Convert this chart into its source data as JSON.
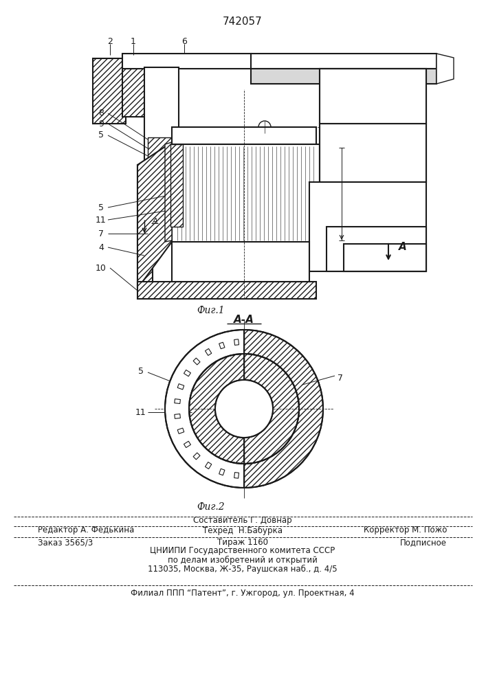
{
  "patent_number": "742057",
  "fig1_label": "Фиг.1",
  "fig2_label": "Фиг.2",
  "section_label": "А-А",
  "bg_color": "#ffffff",
  "line_color": "#1a1a1a",
  "footer": {
    "line0_center": "Составитель Г. Довнар",
    "line1_left": "Редактор А. Федькина",
    "line1_center": "Техред  Н.Бабурка",
    "line1_right": "Корректор М. Пожо",
    "line2_left": "Заказ 3565/3",
    "line2_center": "Тираж 1160",
    "line2_right": "Подписное",
    "line3": "ЦНИИПИ Государственного комитета СССР",
    "line4": "по делам изобретений и открытий",
    "line5": "113035, Москва, Ж-35, Раушская наб., д. 4/5",
    "line6": "Филиал ППП “Патент”, г. Ужгород, ул. Проектная, 4"
  }
}
